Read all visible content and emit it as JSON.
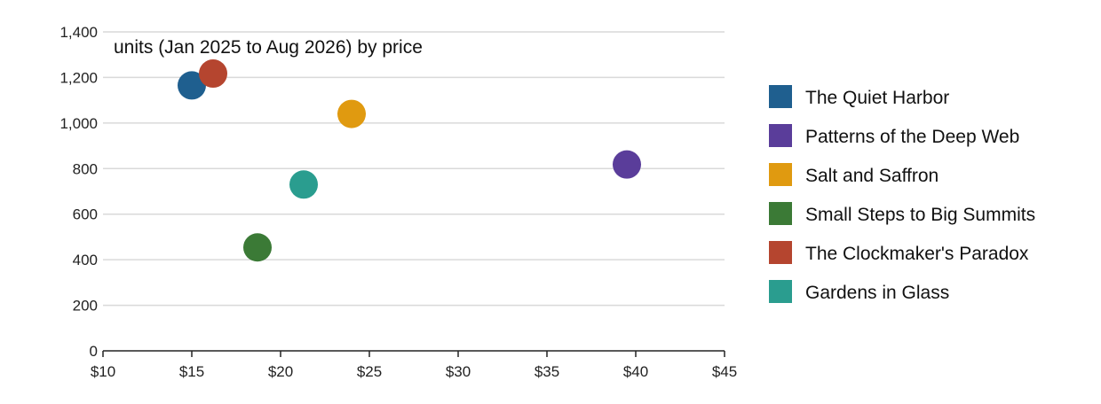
{
  "chart_data": {
    "type": "scatter",
    "title": "units (Jan 2025 to Aug 2026) by price",
    "xlabel": "",
    "ylabel": "",
    "xlim": [
      10,
      45
    ],
    "ylim": [
      0,
      1400
    ],
    "x_ticks": [
      10,
      15,
      20,
      25,
      30,
      35,
      40,
      45
    ],
    "x_tick_labels": [
      "$10",
      "$15",
      "$20",
      "$25",
      "$30",
      "$35",
      "$40",
      "$45"
    ],
    "y_ticks": [
      0,
      200,
      400,
      600,
      800,
      1000,
      1200,
      1400
    ],
    "y_tick_labels": [
      "0",
      "200",
      "400",
      "600",
      "800",
      "1,000",
      "1,200",
      "1,400"
    ],
    "grid": true,
    "legend_position": "right",
    "series": [
      {
        "name": "The Quiet Harbor",
        "color": "#1f5f8f",
        "points": [
          {
            "x": 15.0,
            "y": 1165
          }
        ]
      },
      {
        "name": "Patterns of the Deep Web",
        "color": "#5a3d9a",
        "points": [
          {
            "x": 39.5,
            "y": 818
          }
        ]
      },
      {
        "name": "Salt and Saffron",
        "color": "#e09a10",
        "points": [
          {
            "x": 24.0,
            "y": 1040
          }
        ]
      },
      {
        "name": "Small Steps to Big Summits",
        "color": "#3b7a36",
        "points": [
          {
            "x": 18.7,
            "y": 454
          }
        ]
      },
      {
        "name": "The Clockmaker's Paradox",
        "color": "#b5452f",
        "points": [
          {
            "x": 16.2,
            "y": 1217
          }
        ]
      },
      {
        "name": "Gardens in Glass",
        "color": "#2a9d8f",
        "points": [
          {
            "x": 21.3,
            "y": 730
          }
        ]
      }
    ]
  }
}
